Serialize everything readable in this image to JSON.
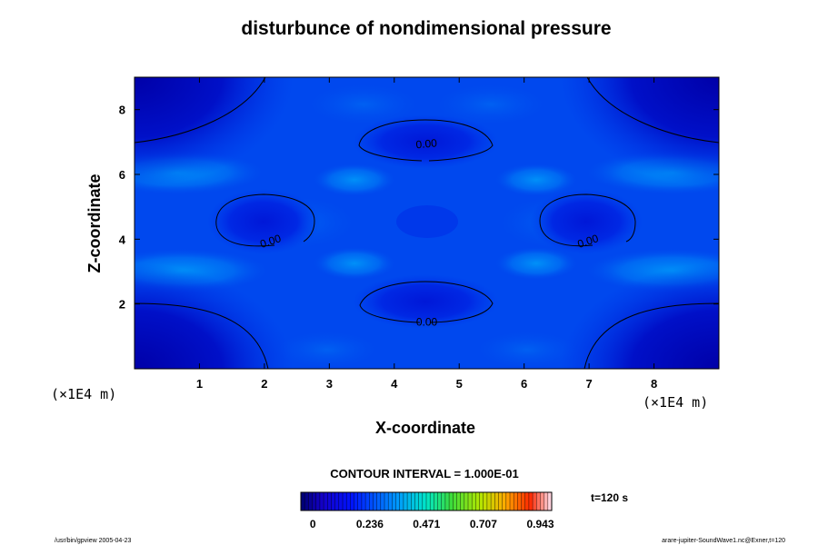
{
  "chart_data": {
    "type": "heatmap",
    "title": "disturbunce of nondimensional pressure",
    "xlabel": "X-coordinate",
    "ylabel": "Z-coordinate",
    "xunit": "(×1E4 m)",
    "yunit": "(×1E4 m)",
    "xlim": [
      0,
      9
    ],
    "ylim": [
      0,
      9
    ],
    "xticks": [
      1,
      2,
      3,
      4,
      5,
      6,
      7,
      8
    ],
    "yticks": [
      2,
      4,
      6,
      8
    ],
    "contour_interval_label": "CONTOUR INTERVAL = 1.000E-01",
    "time_label": "t=120 s",
    "colorbar": {
      "ticks": [
        "0",
        "0.236",
        "0.471",
        "0.707",
        "0.943"
      ],
      "range": [
        -0.05,
        0.99
      ]
    },
    "contour_labels": [
      {
        "text": "0.00",
        "x": 4.5,
        "z": 7.0
      },
      {
        "text": "0.00",
        "x": 2.0,
        "z": 4.0
      },
      {
        "text": "0.00",
        "x": 7.0,
        "z": 4.0
      },
      {
        "text": "0.00",
        "x": 4.5,
        "z": 1.5
      }
    ],
    "footer_left": "/usr/bin/gpview 2005-04-23",
    "footer_right": "arare-jupiter-SoundWave1.nc@Exner,t=120"
  }
}
